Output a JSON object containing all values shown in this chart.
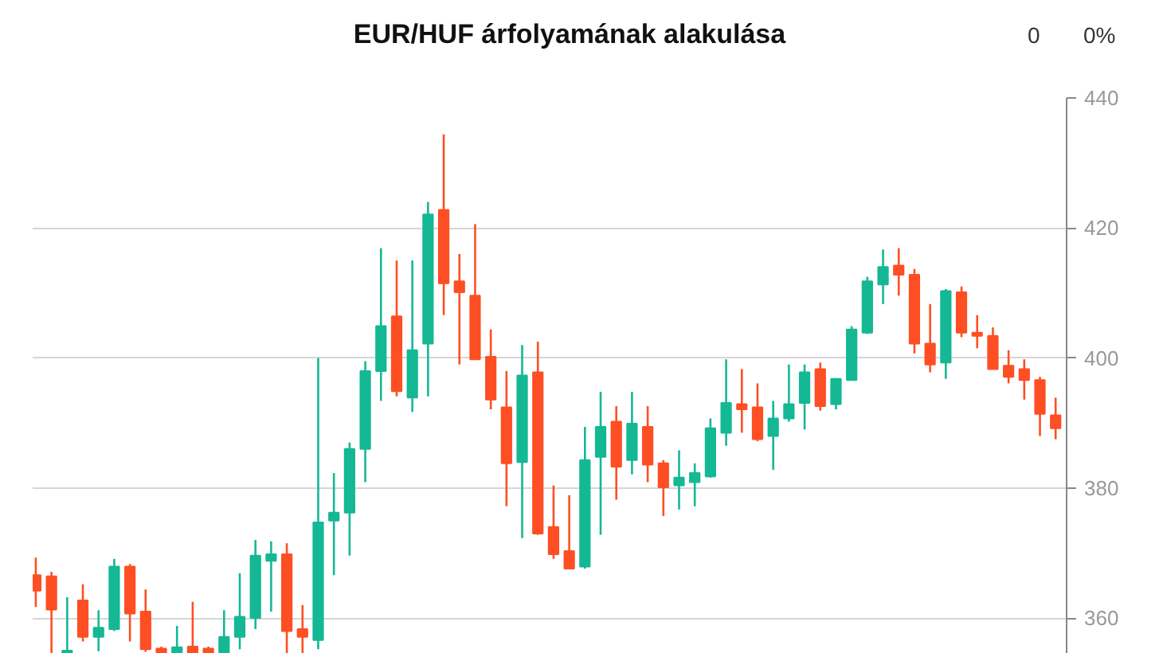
{
  "chart_data": {
    "type": "candlestick",
    "title": "EUR/HUF árfolyamának alakulása",
    "annotations": [
      "0",
      "0%"
    ],
    "categories": [
      null,
      null,
      null,
      null,
      null,
      null,
      null,
      null,
      null,
      null,
      null,
      null,
      null,
      null,
      null,
      null,
      null,
      null,
      null,
      null,
      null,
      null,
      null,
      null,
      null,
      null,
      null,
      null,
      null,
      null,
      null,
      null,
      null,
      null,
      null,
      null,
      null,
      null,
      null,
      null,
      null,
      null,
      null,
      null,
      null,
      null,
      null,
      null,
      null,
      null,
      null,
      null,
      null,
      null,
      null,
      null,
      null,
      null,
      null,
      null,
      null,
      null,
      null,
      null,
      null,
      null
    ],
    "ohlc": [
      [
        366.6,
        369.3,
        361.7,
        364.2
      ],
      [
        366.4,
        367.1,
        354.6,
        361.3
      ],
      [
        354.6,
        363.2,
        354.6,
        355.0
      ],
      [
        362.7,
        365.2,
        356.4,
        357.1
      ],
      [
        357.1,
        361.2,
        354.9,
        358.5
      ],
      [
        358.3,
        369.1,
        358.0,
        367.9
      ],
      [
        367.9,
        368.3,
        356.4,
        360.7
      ],
      [
        361.0,
        364.4,
        354.8,
        355.2
      ],
      [
        355.3,
        355.6,
        354.6,
        354.6
      ],
      [
        354.6,
        358.8,
        354.6,
        355.5
      ],
      [
        355.6,
        362.5,
        354.6,
        354.6
      ],
      [
        355.3,
        355.6,
        354.6,
        354.6
      ],
      [
        354.6,
        361.2,
        354.6,
        357.1
      ],
      [
        357.1,
        366.9,
        355.2,
        360.2
      ],
      [
        360.0,
        372.0,
        358.3,
        369.6
      ],
      [
        368.8,
        371.8,
        361.0,
        369.8
      ],
      [
        369.8,
        371.5,
        354.6,
        358.0
      ],
      [
        358.3,
        362.0,
        354.6,
        357.1
      ],
      [
        356.6,
        400.0,
        355.2,
        374.7
      ],
      [
        375.0,
        382.3,
        366.6,
        376.2
      ],
      [
        376.2,
        387.0,
        369.6,
        386.0
      ],
      [
        386.0,
        399.5,
        380.9,
        398.0
      ],
      [
        398.0,
        416.9,
        393.4,
        404.9
      ],
      [
        406.4,
        415.0,
        394.1,
        394.9
      ],
      [
        393.9,
        415.0,
        391.7,
        401.2
      ],
      [
        402.2,
        424.0,
        394.1,
        422.1
      ],
      [
        422.8,
        434.4,
        406.6,
        411.5
      ],
      [
        411.8,
        416.0,
        399.0,
        410.1
      ],
      [
        409.6,
        420.6,
        399.8,
        399.8
      ],
      [
        400.2,
        404.4,
        392.1,
        393.6
      ],
      [
        392.4,
        398.0,
        377.2,
        383.8
      ],
      [
        384.0,
        402.0,
        372.3,
        397.3
      ],
      [
        397.8,
        402.5,
        372.8,
        373.0
      ],
      [
        374.0,
        380.4,
        369.1,
        369.8
      ],
      [
        370.3,
        378.9,
        367.6,
        367.6
      ],
      [
        367.9,
        389.4,
        367.6,
        384.3
      ],
      [
        384.8,
        394.8,
        372.8,
        389.4
      ],
      [
        390.2,
        392.6,
        378.2,
        383.3
      ],
      [
        384.3,
        394.8,
        382.1,
        389.9
      ],
      [
        389.4,
        392.6,
        380.9,
        383.6
      ],
      [
        383.8,
        384.3,
        375.7,
        380.1
      ],
      [
        380.4,
        385.8,
        376.7,
        381.6
      ],
      [
        380.9,
        383.8,
        377.2,
        382.3
      ],
      [
        381.8,
        390.7,
        381.6,
        389.2
      ],
      [
        388.5,
        399.8,
        386.5,
        393.1
      ],
      [
        392.9,
        398.3,
        388.5,
        392.1
      ],
      [
        392.4,
        396.1,
        387.2,
        387.5
      ],
      [
        388.0,
        393.4,
        382.8,
        390.7
      ],
      [
        390.7,
        399.0,
        390.2,
        392.9
      ],
      [
        393.1,
        399.0,
        389.0,
        397.8
      ],
      [
        398.3,
        399.3,
        391.9,
        392.6
      ],
      [
        392.9,
        396.8,
        392.1,
        396.8
      ],
      [
        396.6,
        404.9,
        396.6,
        404.4
      ],
      [
        403.9,
        412.5,
        403.7,
        411.8
      ],
      [
        411.3,
        416.7,
        408.3,
        414.0
      ],
      [
        414.2,
        416.9,
        409.6,
        412.8
      ],
      [
        412.8,
        413.7,
        400.7,
        402.2
      ],
      [
        402.2,
        408.3,
        397.8,
        399.0
      ],
      [
        399.3,
        410.6,
        396.8,
        410.3
      ],
      [
        410.1,
        411.0,
        403.2,
        403.9
      ],
      [
        403.9,
        406.6,
        401.5,
        403.4
      ],
      [
        403.4,
        404.7,
        398.3,
        398.3
      ],
      [
        398.8,
        401.2,
        396.1,
        397.1
      ],
      [
        398.3,
        399.8,
        393.6,
        396.6
      ],
      [
        396.6,
        397.1,
        388.0,
        391.4
      ],
      [
        391.2,
        393.9,
        387.5,
        389.2
      ]
    ],
    "colors": [
      "#fd4f23",
      "#fd4f23",
      "#14b894",
      "#fd4f23",
      "#14b894",
      "#14b894",
      "#fd4f23",
      "#fd4f23",
      "#fd4f23",
      "#14b894",
      "#fd4f23",
      "#fd4f23",
      "#14b894",
      "#14b894",
      "#14b894",
      "#14b894",
      "#fd4f23",
      "#fd4f23",
      "#14b894",
      "#14b894",
      "#14b894",
      "#14b894",
      "#14b894",
      "#fd4f23",
      "#14b894",
      "#14b894",
      "#fd4f23",
      "#fd4f23",
      "#fd4f23",
      "#fd4f23",
      "#fd4f23",
      "#14b894",
      "#fd4f23",
      "#fd4f23",
      "#fd4f23",
      "#14b894",
      "#14b894",
      "#fd4f23",
      "#14b894",
      "#fd4f23",
      "#fd4f23",
      "#14b894",
      "#14b894",
      "#14b894",
      "#14b894",
      "#fd4f23",
      "#fd4f23",
      "#14b894",
      "#14b894",
      "#14b894",
      "#fd4f23",
      "#14b894",
      "#14b894",
      "#14b894",
      "#14b894",
      "#fd4f23",
      "#fd4f23",
      "#fd4f23",
      "#14b894",
      "#fd4f23",
      "#fd4f23",
      "#fd4f23",
      "#fd4f23",
      "#fd4f23",
      "#fd4f23",
      "#fd4f23"
    ],
    "ylim": [
      354.5,
      440
    ],
    "yticks": [
      360,
      380,
      400,
      420,
      440
    ],
    "grid": "y",
    "tick_labels": "y"
  }
}
